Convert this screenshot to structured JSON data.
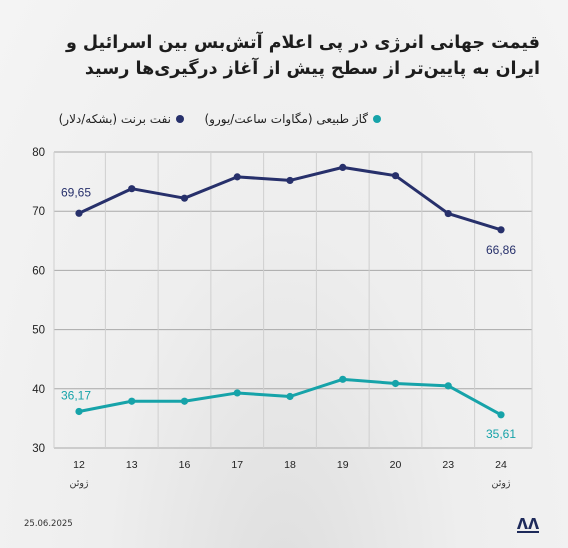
{
  "title": "قیمت جهانی انرژی در پی اعلام آتش‌بس بین اسرائیل و ایران به پایین‌تر از سطح پیش از آغاز درگیری‌ها رسید",
  "date": "25.06.2025",
  "logo_name": "AA",
  "chart_data": {
    "type": "line",
    "categories": [
      "12",
      "13",
      "16",
      "17",
      "18",
      "19",
      "20",
      "23",
      "24"
    ],
    "month_label": "ژوئن",
    "ylim": [
      30,
      80
    ],
    "yticks": [
      30,
      40,
      50,
      60,
      70,
      80
    ],
    "grid": true,
    "legend_position": "top",
    "series": [
      {
        "name": "نفت برنت (بشکه/دلار)",
        "color": "#27306b",
        "values": [
          69.65,
          73.8,
          72.2,
          75.8,
          75.2,
          77.4,
          76.0,
          69.6,
          66.86
        ],
        "labels": {
          "0": "69,65",
          "8": "66,86"
        }
      },
      {
        "name": "گاز طبیعی (مگاوات ساعت/یورو)",
        "color": "#16a3a9",
        "values": [
          36.17,
          37.9,
          37.9,
          39.3,
          38.7,
          41.6,
          40.9,
          40.5,
          35.61
        ],
        "labels": {
          "0": "36,17",
          "8": "35,61"
        }
      }
    ]
  }
}
